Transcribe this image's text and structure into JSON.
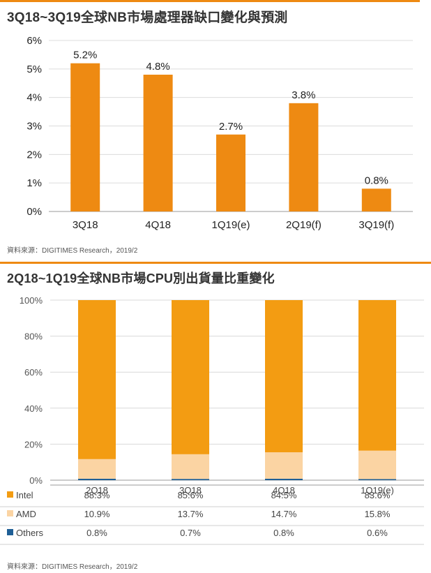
{
  "chart_data": [
    {
      "type": "bar",
      "title": "3Q18~3Q19全球NB市場處理器缺口變化與預測",
      "categories": [
        "3Q18",
        "4Q18",
        "1Q19(e)",
        "2Q19(f)",
        "3Q19(f)"
      ],
      "values": [
        5.2,
        4.8,
        2.7,
        3.8,
        0.8
      ],
      "data_labels": [
        "5.2%",
        "4.8%",
        "2.7%",
        "3.8%",
        "0.8%"
      ],
      "y_ticks": [
        "0%",
        "1%",
        "2%",
        "3%",
        "4%",
        "5%",
        "6%"
      ],
      "ylim": [
        0,
        6
      ],
      "grid": true,
      "source": "資料來源：DIGITIMES Research，2019/2",
      "colors": {
        "bar": "#ee8a12"
      }
    },
    {
      "type": "bar",
      "stacked": true,
      "title": "2Q18~1Q19全球NB市場CPU別出貨量比重變化",
      "categories": [
        "2Q18",
        "3Q18",
        "4Q18",
        "1Q19(e)"
      ],
      "series": [
        {
          "name": "Others",
          "values": [
            0.8,
            0.7,
            0.8,
            0.6
          ],
          "labels": [
            "0.8%",
            "0.7%",
            "0.8%",
            "0.6%"
          ],
          "color": "#1f5f96"
        },
        {
          "name": "AMD",
          "values": [
            10.9,
            13.7,
            14.7,
            15.8
          ],
          "labels": [
            "10.9%",
            "13.7%",
            "14.7%",
            "15.8%"
          ],
          "color": "#fbd4a3"
        },
        {
          "name": "Intel",
          "values": [
            88.3,
            85.6,
            84.5,
            83.6
          ],
          "labels": [
            "88.3%",
            "85.6%",
            "84.5%",
            "83.6%"
          ],
          "color": "#f39c12"
        }
      ],
      "y_ticks": [
        "0%",
        "20%",
        "40%",
        "60%",
        "80%",
        "100%"
      ],
      "ylim": [
        0,
        100
      ],
      "grid": true,
      "legend": "data table below chart",
      "source": "資料來源：DIGITIMES Research，2019/2"
    }
  ]
}
